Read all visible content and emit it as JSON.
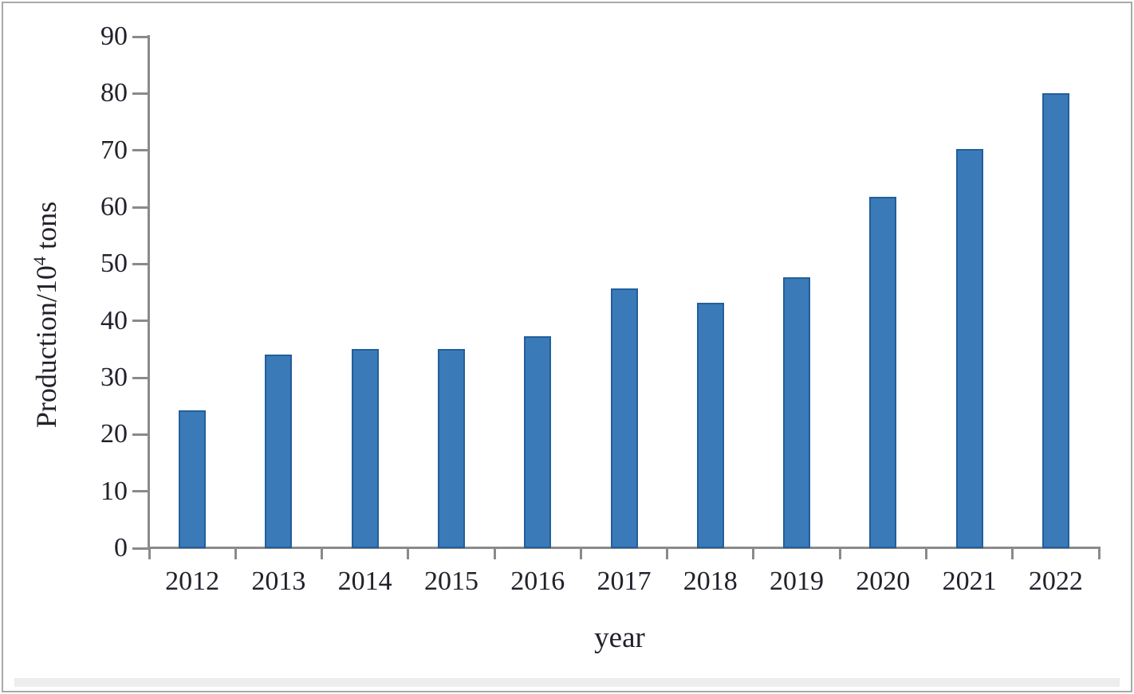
{
  "chart_data": {
    "type": "bar",
    "title": "",
    "xlabel": "year",
    "ylabel": "Production/10⁴ tons",
    "ylabel_parts": {
      "prefix": "Production/10",
      "sup": "4",
      "suffix": " tons"
    },
    "categories": [
      "2012",
      "2013",
      "2014",
      "2015",
      "2016",
      "2017",
      "2018",
      "2019",
      "2020",
      "2021",
      "2022"
    ],
    "values": [
      24.3,
      34.0,
      35.1,
      35.1,
      37.3,
      45.7,
      43.2,
      47.6,
      61.8,
      70.2,
      80.1
    ],
    "ylim": [
      0,
      90
    ],
    "yticks": [
      0,
      10,
      20,
      30,
      40,
      50,
      60,
      70,
      80,
      90
    ],
    "grid": false,
    "legend_position": "none",
    "bar_fill_color": "#3a7ab8",
    "bar_border_color": "#235f9a",
    "axis_color": "#8a8a8a",
    "text_color": "#21212b"
  }
}
